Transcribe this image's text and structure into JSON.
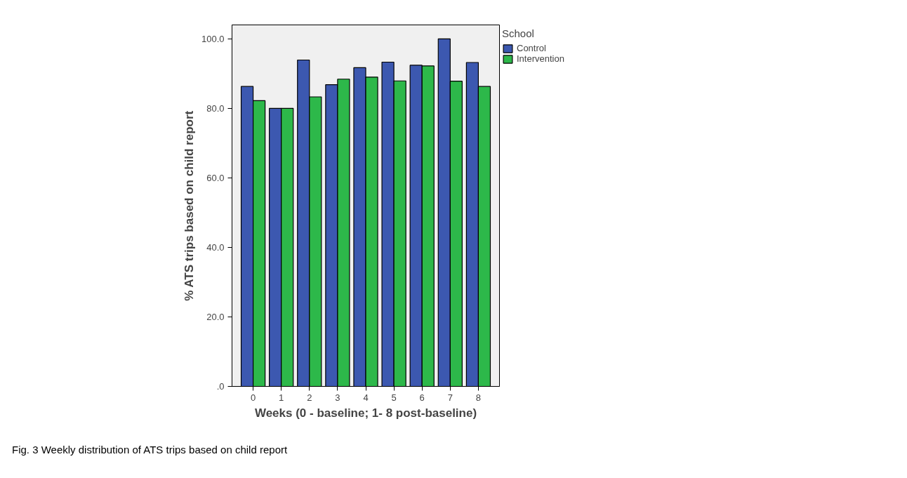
{
  "chart_data": {
    "type": "bar",
    "xlabel": "Weeks (0 - baseline; 1- 8 post-baseline)",
    "ylabel": "% ATS trips based on child report",
    "legend_title": "School",
    "legend": "top right",
    "grid": false,
    "categories": [
      "0",
      "1",
      "2",
      "3",
      "4",
      "5",
      "6",
      "7",
      "8"
    ],
    "series": [
      {
        "name": "Control",
        "color": "#3c58b0",
        "values": [
          86.3,
          80.0,
          93.9,
          86.8,
          91.7,
          93.3,
          92.4,
          100.0,
          93.2
        ]
      },
      {
        "name": "Intervention",
        "color": "#2db84a",
        "values": [
          82.2,
          80.0,
          83.3,
          88.4,
          89.0,
          87.9,
          92.2,
          87.8,
          86.3
        ]
      }
    ],
    "ylim": [
      0,
      104
    ],
    "yticks": [
      {
        "value": 0,
        "label": ".0"
      },
      {
        "value": 20,
        "label": "20.0"
      },
      {
        "value": 40,
        "label": "40.0"
      },
      {
        "value": 60,
        "label": "60.0"
      },
      {
        "value": 80,
        "label": "80.0"
      },
      {
        "value": 100,
        "label": "100.0"
      }
    ],
    "annotations": [
      "Fig. 3 Weekly distribution of ATS trips based on child report"
    ]
  }
}
